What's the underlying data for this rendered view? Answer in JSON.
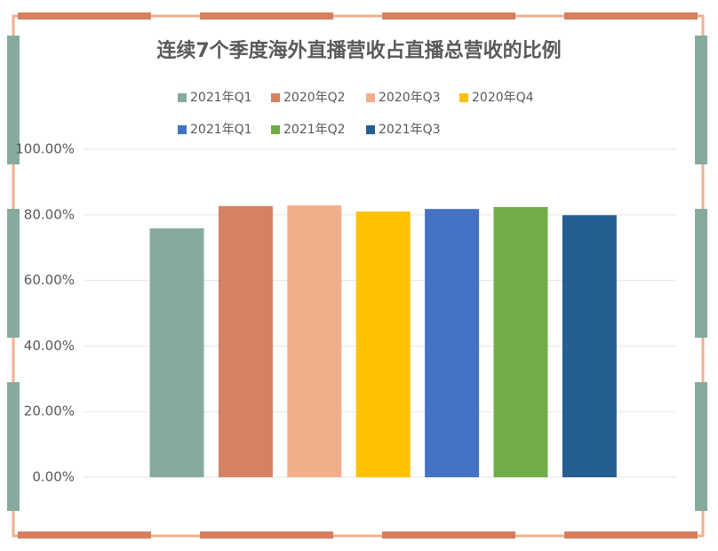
{
  "chart_data": {
    "type": "bar",
    "title": "连续7个季度海外直播营收占直播总营收的比例",
    "categories": [
      null
    ],
    "series": [
      {
        "name": "2021年Q1",
        "color": "#86ab9d",
        "values": [
          75.9
        ]
      },
      {
        "name": "2020年Q2",
        "color": "#d58163",
        "values": [
          82.7
        ]
      },
      {
        "name": "2020年Q3",
        "color": "#f2ae8b",
        "values": [
          82.9
        ]
      },
      {
        "name": "2020年Q4",
        "color": "#ffc000",
        "values": [
          81.0
        ]
      },
      {
        "name": "2021年Q1",
        "color": "#4472c4",
        "values": [
          81.8
        ]
      },
      {
        "name": "2021年Q2",
        "color": "#70ad47",
        "values": [
          82.4
        ]
      },
      {
        "name": "2021年Q3",
        "color": "#255e91",
        "values": [
          79.9
        ]
      }
    ],
    "ylim": [
      0,
      100
    ],
    "yticks": [
      {
        "value": 0,
        "label": "0.00%"
      },
      {
        "value": 20,
        "label": "20.00%"
      },
      {
        "value": 40,
        "label": "40.00%"
      },
      {
        "value": 60,
        "label": "60.00%"
      },
      {
        "value": 80,
        "label": "80.00%"
      },
      {
        "value": 100,
        "label": "100.00%"
      }
    ],
    "grid": true,
    "legend": "top"
  }
}
